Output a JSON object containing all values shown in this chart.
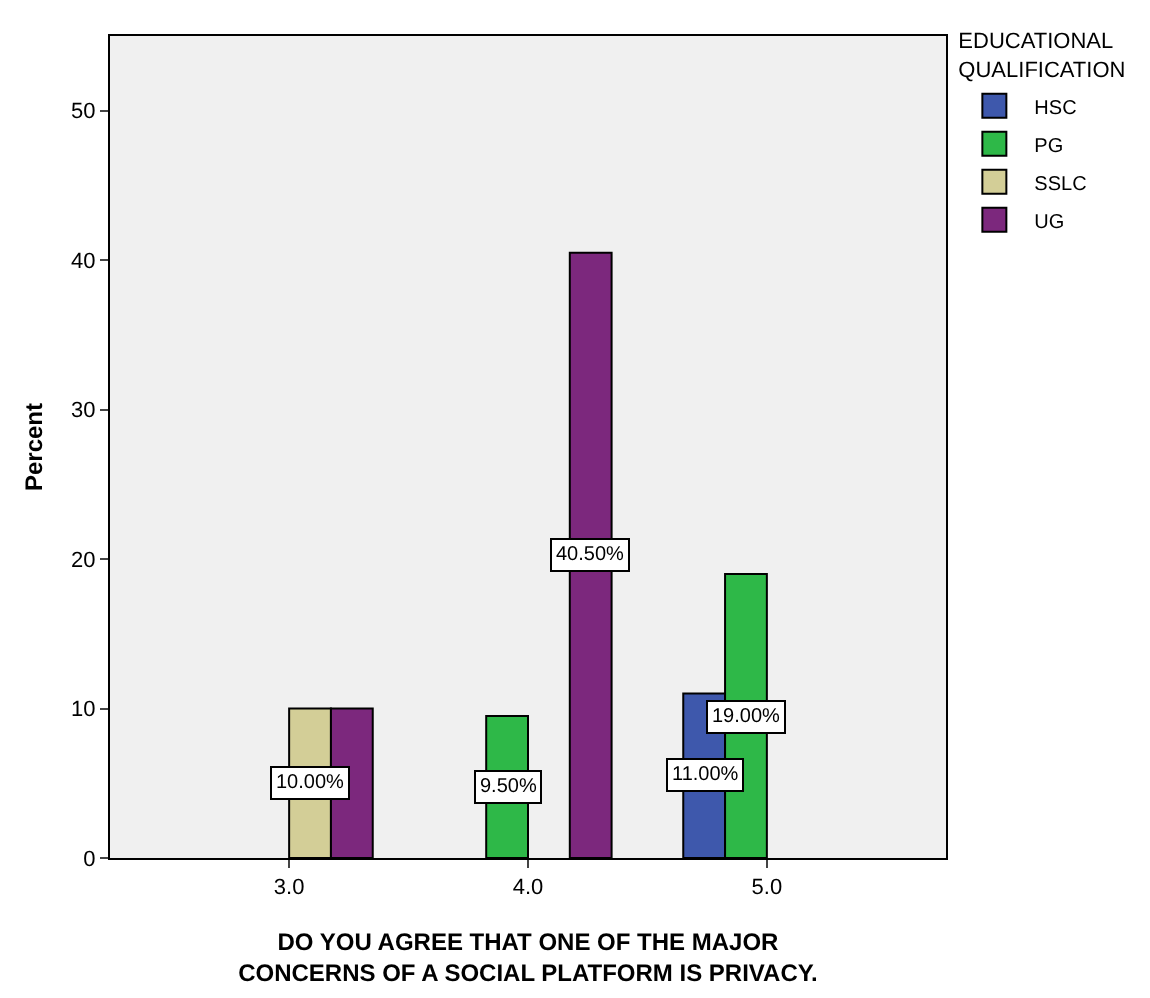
{
  "chart_data": {
    "type": "bar",
    "xlabel": "DO YOU AGREE THAT ONE OF THE MAJOR\nCONCERNS OF A SOCIAL PLATFORM IS PRIVACY.",
    "ylabel": "Percent",
    "legend_title": "EDUCATIONAL\nQUALIFICATION",
    "categories": [
      "3.0",
      "4.0",
      "5.0"
    ],
    "series": [
      {
        "name": "HSC",
        "color": "#3e58ac",
        "values": [
          null,
          null,
          11
        ],
        "value_labels": [
          null,
          null,
          "11.00%"
        ]
      },
      {
        "name": "PG",
        "color": "#2eb848",
        "values": [
          null,
          9.5,
          19
        ],
        "value_labels": [
          null,
          "9.50%",
          "19.00%"
        ]
      },
      {
        "name": "SSLC",
        "color": "#d3ce97",
        "values": [
          10,
          null,
          null
        ],
        "value_labels": [
          "10.00%",
          null,
          null
        ]
      },
      {
        "name": "UG",
        "color": "#7c287d",
        "values": [
          10,
          40.5,
          null
        ],
        "value_labels": [
          null,
          "40.50%",
          null
        ]
      }
    ],
    "ylim": [
      0,
      55
    ],
    "yticks": [
      0,
      10,
      20,
      30,
      40,
      50
    ],
    "grid": false,
    "legend": "top right"
  }
}
